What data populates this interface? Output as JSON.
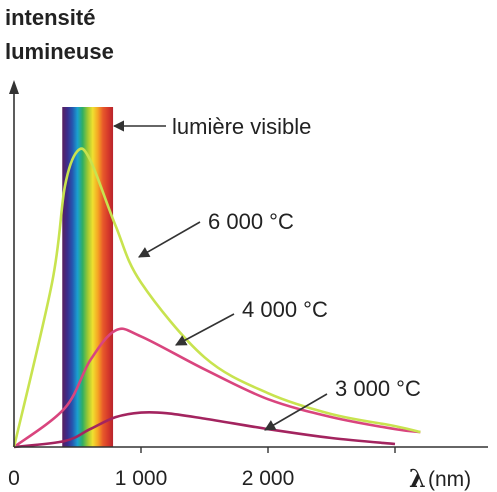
{
  "chart_data": {
    "type": "line",
    "ylabel_lines": [
      "intensité",
      "lumineuse"
    ],
    "xlabel_symbol": "λ",
    "xlabel_unit": "(nm)",
    "x_ticks": [
      "0",
      "1 000",
      "2 000"
    ],
    "x_tick_values": [
      0,
      1000,
      2000
    ],
    "xlim": [
      0,
      3500
    ],
    "ylim": [
      0,
      1
    ],
    "visible_band": {
      "label": "lumière visible",
      "range_nm": [
        380,
        780
      ]
    },
    "series": [
      {
        "name": "6 000 °C",
        "temperature_c": 6000,
        "color": "#c8e34f",
        "x": [
          0,
          300,
          400,
          500,
          600,
          800,
          1000,
          1500,
          2000,
          2500,
          3000,
          3200
        ],
        "y": [
          0,
          0.55,
          0.87,
          0.99,
          0.96,
          0.74,
          0.55,
          0.3,
          0.18,
          0.11,
          0.07,
          0.05
        ]
      },
      {
        "name": "4 000 °C",
        "temperature_c": 4000,
        "color": "#d9457e",
        "x": [
          0,
          400,
          600,
          800,
          1000,
          1500,
          2000,
          2500,
          3000,
          3200
        ],
        "y": [
          0,
          0.13,
          0.29,
          0.39,
          0.37,
          0.26,
          0.16,
          0.1,
          0.06,
          0.05
        ]
      },
      {
        "name": "3 000 °C",
        "temperature_c": 3000,
        "color": "#a3245f",
        "x": [
          0,
          400,
          600,
          800,
          1000,
          1200,
          1500,
          2000,
          2500,
          3000
        ],
        "y": [
          0,
          0.02,
          0.06,
          0.1,
          0.115,
          0.113,
          0.095,
          0.06,
          0.03,
          0.01
        ]
      }
    ],
    "grid": false,
    "legend": "none"
  },
  "colors": {
    "axis": "#333333",
    "arrow": "#333333",
    "spectrum": [
      "#5a1f5e",
      "#3b2c8c",
      "#2557b0",
      "#1aa0d0",
      "#2fae62",
      "#9cc832",
      "#f0e030",
      "#f5a623",
      "#e85a2a",
      "#d63a2a",
      "#b8232d"
    ]
  }
}
